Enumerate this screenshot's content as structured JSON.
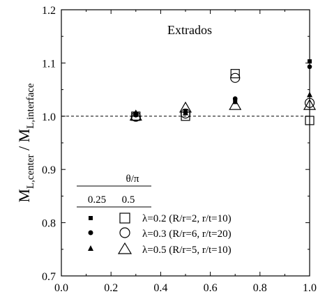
{
  "chart_data": {
    "type": "scatter",
    "annotation": "Extrados",
    "ylabel": {
      "main1": "M",
      "sub1": "L,center",
      "sep": " / ",
      "main2": "M",
      "sub2": "L,interface"
    },
    "xlim": [
      0.0,
      1.0
    ],
    "ylim": [
      0.7,
      1.2
    ],
    "xticks": [
      "0.0",
      "0.2",
      "0.4",
      "0.6",
      "0.8",
      "1.0"
    ],
    "yticks": [
      "0.7",
      "0.8",
      "0.9",
      "1.0",
      "1.1",
      "1.2"
    ],
    "reference_line": {
      "y": 1.0,
      "style": "dashed"
    },
    "legend": {
      "header": "θ/π",
      "columns": [
        "0.25",
        "0.5"
      ],
      "entries": [
        {
          "marker": "square",
          "label": "λ=0.2 (R/r=2, r/t=10)"
        },
        {
          "marker": "circle",
          "label": "λ=0.3 (R/r=6, r/t=20)"
        },
        {
          "marker": "triangle",
          "label": "λ=0.5 (R/r=5, r/t=10)"
        }
      ]
    },
    "series": [
      {
        "marker": "square",
        "fill": "filled",
        "x": [
          0.3,
          0.5,
          0.7,
          1.0
        ],
        "y": [
          1.003,
          1.01,
          1.03,
          1.103
        ]
      },
      {
        "marker": "square",
        "fill": "open",
        "x": [
          0.3,
          0.5,
          0.7,
          1.0
        ],
        "y": [
          1.0,
          1.0,
          1.08,
          0.992
        ]
      },
      {
        "marker": "circle",
        "fill": "filled",
        "x": [
          0.3,
          0.5,
          0.7,
          1.0
        ],
        "y": [
          1.002,
          1.007,
          1.033,
          1.093
        ]
      },
      {
        "marker": "circle",
        "fill": "open",
        "x": [
          0.3,
          0.5,
          0.7,
          1.0
        ],
        "y": [
          0.999,
          1.005,
          1.072,
          1.025
        ]
      },
      {
        "marker": "triangle",
        "fill": "filled",
        "x": [
          0.3,
          0.5,
          0.7,
          1.0
        ],
        "y": [
          1.003,
          1.006,
          1.027,
          1.04
        ]
      },
      {
        "marker": "triangle",
        "fill": "open",
        "x": [
          0.3,
          0.5,
          0.7,
          1.0
        ],
        "y": [
          1.0,
          1.015,
          1.02,
          1.02
        ]
      }
    ]
  }
}
